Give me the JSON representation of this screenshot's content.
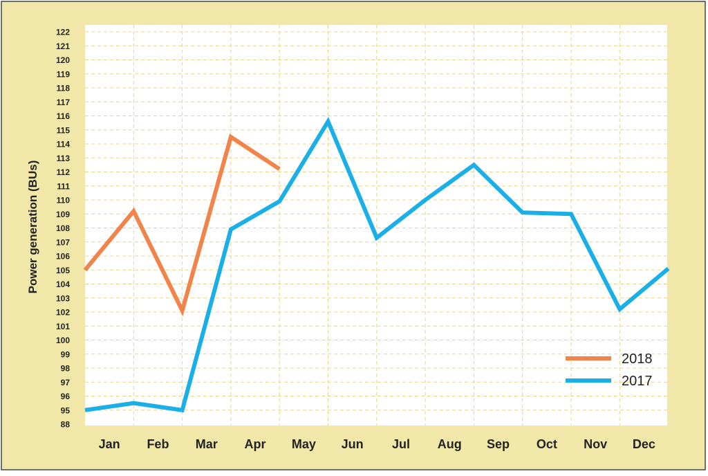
{
  "chart_data": {
    "type": "line",
    "ylabel": "Power generation (BUs)",
    "categories": [
      "Jan",
      "Feb",
      "Mar",
      "Apr",
      "May",
      "Jun",
      "Jul",
      "Aug",
      "Sep",
      "Oct",
      "Nov",
      "Dec"
    ],
    "y_ticks": [
      "88",
      "95",
      "96",
      "97",
      "98",
      "99",
      "100",
      "101",
      "102",
      "103",
      "104",
      "105",
      "106",
      "107",
      "108",
      "109",
      "110",
      "111",
      "112",
      "113",
      "114",
      "115",
      "116",
      "117",
      "118",
      "119",
      "120",
      "121",
      "122"
    ],
    "y_axis_note": "non-linear: ticks are equally spaced; the first step jumps from 88 to 95",
    "grid": true,
    "legend_position": "bottom-right",
    "series": [
      {
        "name": "2018",
        "color": "#F0844A",
        "x": [
          0.0,
          1.0,
          2.0,
          3.0,
          4.0
        ],
        "values": [
          105.0,
          109.2,
          102.1,
          114.5,
          112.2
        ]
      },
      {
        "name": "2017",
        "color": "#1BAFE8",
        "x": [
          0.0,
          1.0,
          2.0,
          3.0,
          4.0,
          5.0,
          6.0,
          7.0,
          8.0,
          9.0,
          10.0,
          11.0,
          12.0
        ],
        "values": [
          95.0,
          95.5,
          95.0,
          107.9,
          109.9,
          115.6,
          107.3,
          110.0,
          112.5,
          109.1,
          109.0,
          102.2,
          105.1
        ]
      }
    ]
  },
  "colors": {
    "frame_background": "#F0E7A8",
    "plot_background": "#FFFFFF",
    "grid": "#E8D48A",
    "text": "#222222"
  }
}
